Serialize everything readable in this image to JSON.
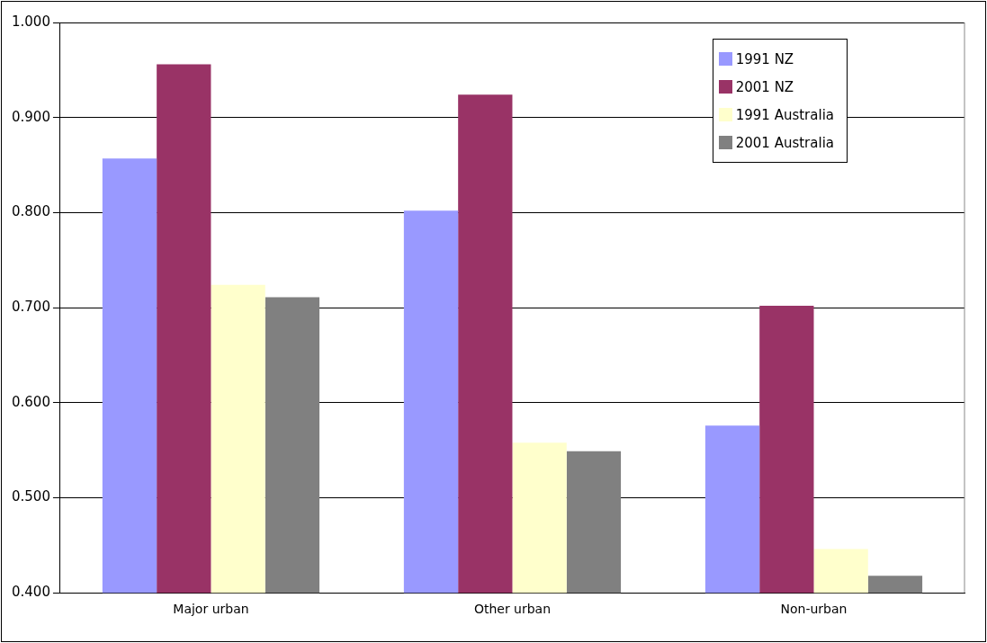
{
  "chart_data": {
    "type": "bar",
    "categories": [
      "Major urban",
      "Other urban",
      "Non-urban"
    ],
    "series": [
      {
        "name": "1991 NZ",
        "color": "#9999ff",
        "values": [
          0.857,
          0.802,
          0.576
        ]
      },
      {
        "name": "2001 NZ",
        "color": "#993366",
        "values": [
          0.956,
          0.924,
          0.702
        ]
      },
      {
        "name": "1991 Australia",
        "color": "#ffffcc",
        "values": [
          0.724,
          0.558,
          0.446
        ]
      },
      {
        "name": "2001 Australia",
        "color": "#808080",
        "values": [
          0.711,
          0.549,
          0.418
        ]
      }
    ],
    "ylim": [
      0.4,
      1.0
    ],
    "yticks": [
      {
        "value": 0.4,
        "label": "0.400"
      },
      {
        "value": 0.5,
        "label": "0.500"
      },
      {
        "value": 0.6,
        "label": "0.600"
      },
      {
        "value": 0.7,
        "label": "0.700"
      },
      {
        "value": 0.8,
        "label": "0.800"
      },
      {
        "value": 0.9,
        "label": "0.900"
      },
      {
        "value": 1.0,
        "label": "1.000"
      }
    ],
    "grid": "y",
    "legend": "top right"
  }
}
